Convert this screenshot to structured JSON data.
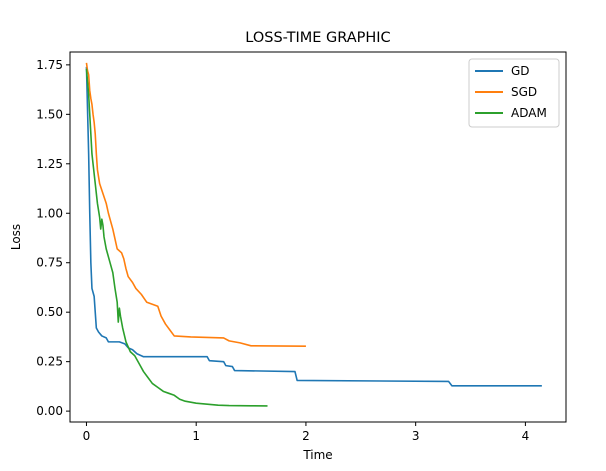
{
  "chart_data": {
    "type": "line",
    "title": "LOSS-TIME GRAPHIC",
    "xlabel": "Time",
    "ylabel": "Loss",
    "xlim": [
      -0.15,
      4.37
    ],
    "ylim": [
      -0.055,
      1.815
    ],
    "x_ticks": [
      0,
      1,
      2,
      3,
      4
    ],
    "y_ticks": [
      0.0,
      0.25,
      0.5,
      0.75,
      1.0,
      1.25,
      1.5,
      1.75
    ],
    "legend_position": "top-right",
    "grid": false,
    "series": [
      {
        "name": "GD",
        "color": "#1f77b4",
        "points": [
          [
            0.0,
            1.74
          ],
          [
            0.02,
            1.3
          ],
          [
            0.03,
            1.0
          ],
          [
            0.04,
            0.75
          ],
          [
            0.05,
            0.62
          ],
          [
            0.07,
            0.58
          ],
          [
            0.09,
            0.42
          ],
          [
            0.11,
            0.4
          ],
          [
            0.14,
            0.38
          ],
          [
            0.18,
            0.37
          ],
          [
            0.2,
            0.35
          ],
          [
            0.3,
            0.35
          ],
          [
            0.35,
            0.34
          ],
          [
            0.38,
            0.32
          ],
          [
            0.42,
            0.31
          ],
          [
            0.46,
            0.29
          ],
          [
            0.5,
            0.28
          ],
          [
            0.52,
            0.275
          ],
          [
            1.1,
            0.275
          ],
          [
            1.12,
            0.255
          ],
          [
            1.25,
            0.25
          ],
          [
            1.27,
            0.23
          ],
          [
            1.33,
            0.225
          ],
          [
            1.35,
            0.205
          ],
          [
            1.9,
            0.2
          ],
          [
            1.92,
            0.155
          ],
          [
            3.3,
            0.15
          ],
          [
            3.33,
            0.128
          ],
          [
            4.15,
            0.128
          ]
        ]
      },
      {
        "name": "SGD",
        "color": "#ff7f0e",
        "points": [
          [
            0.0,
            1.76
          ],
          [
            0.01,
            1.72
          ],
          [
            0.02,
            1.7
          ],
          [
            0.03,
            1.62
          ],
          [
            0.04,
            1.58
          ],
          [
            0.05,
            1.55
          ],
          [
            0.06,
            1.5
          ],
          [
            0.07,
            1.46
          ],
          [
            0.08,
            1.4
          ],
          [
            0.09,
            1.3
          ],
          [
            0.1,
            1.22
          ],
          [
            0.12,
            1.15
          ],
          [
            0.15,
            1.1
          ],
          [
            0.18,
            1.05
          ],
          [
            0.2,
            1.0
          ],
          [
            0.22,
            0.96
          ],
          [
            0.24,
            0.92
          ],
          [
            0.26,
            0.87
          ],
          [
            0.28,
            0.82
          ],
          [
            0.32,
            0.8
          ],
          [
            0.34,
            0.77
          ],
          [
            0.36,
            0.72
          ],
          [
            0.38,
            0.68
          ],
          [
            0.42,
            0.65
          ],
          [
            0.45,
            0.62
          ],
          [
            0.5,
            0.59
          ],
          [
            0.55,
            0.55
          ],
          [
            0.65,
            0.53
          ],
          [
            0.68,
            0.48
          ],
          [
            0.72,
            0.44
          ],
          [
            0.76,
            0.41
          ],
          [
            0.8,
            0.38
          ],
          [
            0.95,
            0.375
          ],
          [
            1.25,
            0.37
          ],
          [
            1.3,
            0.355
          ],
          [
            1.4,
            0.345
          ],
          [
            1.5,
            0.33
          ],
          [
            2.0,
            0.328
          ]
        ]
      },
      {
        "name": "ADAM",
        "color": "#2ca02c",
        "points": [
          [
            0.0,
            1.73
          ],
          [
            0.02,
            1.6
          ],
          [
            0.04,
            1.4
          ],
          [
            0.05,
            1.3
          ],
          [
            0.06,
            1.25
          ],
          [
            0.08,
            1.15
          ],
          [
            0.1,
            1.05
          ],
          [
            0.12,
            0.98
          ],
          [
            0.13,
            0.92
          ],
          [
            0.14,
            0.97
          ],
          [
            0.15,
            0.94
          ],
          [
            0.16,
            0.88
          ],
          [
            0.18,
            0.82
          ],
          [
            0.2,
            0.78
          ],
          [
            0.22,
            0.74
          ],
          [
            0.24,
            0.7
          ],
          [
            0.26,
            0.62
          ],
          [
            0.28,
            0.55
          ],
          [
            0.29,
            0.45
          ],
          [
            0.3,
            0.52
          ],
          [
            0.31,
            0.48
          ],
          [
            0.33,
            0.42
          ],
          [
            0.36,
            0.35
          ],
          [
            0.4,
            0.3
          ],
          [
            0.44,
            0.28
          ],
          [
            0.48,
            0.24
          ],
          [
            0.52,
            0.2
          ],
          [
            0.56,
            0.17
          ],
          [
            0.6,
            0.14
          ],
          [
            0.65,
            0.12
          ],
          [
            0.7,
            0.1
          ],
          [
            0.75,
            0.09
          ],
          [
            0.8,
            0.08
          ],
          [
            0.85,
            0.06
          ],
          [
            0.9,
            0.05
          ],
          [
            0.95,
            0.045
          ],
          [
            1.0,
            0.04
          ],
          [
            1.1,
            0.035
          ],
          [
            1.2,
            0.03
          ],
          [
            1.3,
            0.028
          ],
          [
            1.5,
            0.027
          ],
          [
            1.65,
            0.026
          ]
        ]
      }
    ]
  }
}
